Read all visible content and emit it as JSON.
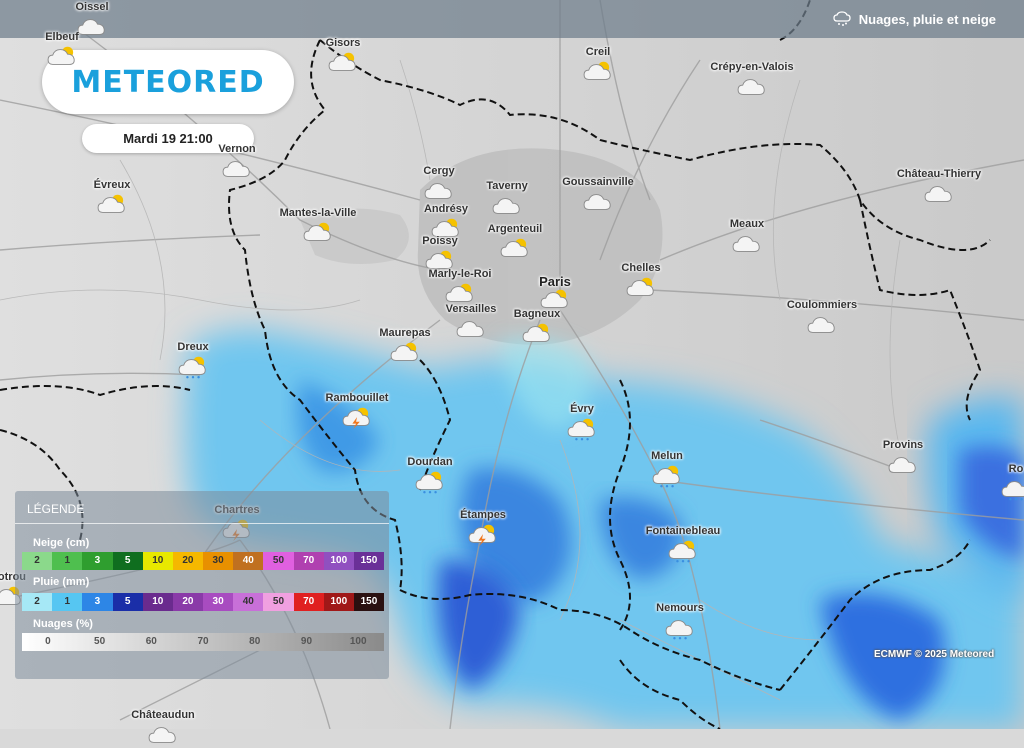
{
  "layer": {
    "title": "Nuages, pluie et neige",
    "icon": "cloud-rain-snow-icon"
  },
  "brand": {
    "logo_text": "METEORED",
    "color": "#1aa0dc"
  },
  "forecast": {
    "date_time": "Mardi 19 21:00"
  },
  "credit": "ECMWF © 2025 Meteored",
  "cities": [
    {
      "name": "Oissel",
      "icon": "cloud-icon"
    },
    {
      "name": "Elbeuf",
      "icon": "partly-cloudy-icon"
    },
    {
      "name": "Gisors",
      "icon": "partly-cloudy-icon"
    },
    {
      "name": "Creil",
      "icon": "partly-cloudy-icon"
    },
    {
      "name": "Crépy-en-Valois",
      "icon": "cloud-icon"
    },
    {
      "name": "Vernon",
      "icon": "cloud-icon"
    },
    {
      "name": "Évreux",
      "icon": "partly-cloudy-icon"
    },
    {
      "name": "Cergy",
      "icon": "cloud-icon"
    },
    {
      "name": "Taverny",
      "icon": "cloud-icon"
    },
    {
      "name": "Goussainville",
      "icon": "cloud-icon"
    },
    {
      "name": "Château-Thierry",
      "icon": "cloud-icon"
    },
    {
      "name": "Mantes-la-Ville",
      "icon": "partly-cloudy-icon"
    },
    {
      "name": "Andrésy",
      "icon": "partly-cloudy-icon"
    },
    {
      "name": "Argenteuil",
      "icon": "partly-cloudy-icon"
    },
    {
      "name": "Meaux",
      "icon": "cloud-icon"
    },
    {
      "name": "Poissy",
      "icon": "partly-cloudy-icon"
    },
    {
      "name": "Marly-le-Roi",
      "icon": "partly-cloudy-icon"
    },
    {
      "name": "Paris",
      "icon": "partly-cloudy-icon"
    },
    {
      "name": "Chelles",
      "icon": "partly-cloudy-icon"
    },
    {
      "name": "Coulommiers",
      "icon": "cloud-icon"
    },
    {
      "name": "Versailles",
      "icon": "cloud-icon"
    },
    {
      "name": "Bagneux",
      "icon": "partly-cloudy-icon"
    },
    {
      "name": "Maurepas",
      "icon": "partly-cloudy-icon"
    },
    {
      "name": "Dreux",
      "icon": "partly-cloudy-rain-icon"
    },
    {
      "name": "Rambouillet",
      "icon": "thunderstorm-icon"
    },
    {
      "name": "Évry",
      "icon": "partly-cloudy-rain-icon"
    },
    {
      "name": "Provins",
      "icon": "cloud-icon"
    },
    {
      "name": "Dourdan",
      "icon": "partly-cloudy-rain-icon"
    },
    {
      "name": "Melun",
      "icon": "partly-cloudy-rain-icon"
    },
    {
      "name": "Chartres",
      "icon": "thunderstorm-icon"
    },
    {
      "name": "Étampes",
      "icon": "thunderstorm-icon"
    },
    {
      "name": "Fontainebleau",
      "icon": "partly-cloudy-rain-icon"
    },
    {
      "name": "Nemours",
      "icon": "cloud-rain-icon"
    },
    {
      "name": "Rotrou",
      "icon": "partly-cloudy-icon"
    },
    {
      "name": "Ro",
      "icon": "cloud-rain-icon"
    },
    {
      "name": "Châteaudun",
      "icon": "cloud-icon"
    }
  ],
  "legend": {
    "title": "LÉGENDE",
    "snow": {
      "label": "Neige (cm)",
      "steps": [
        {
          "value": "2",
          "color": "#8bd98b"
        },
        {
          "value": "1",
          "color": "#4fbf4f"
        },
        {
          "value": "3",
          "color": "#2f9e2f"
        },
        {
          "value": "5",
          "color": "#0f6e1f"
        },
        {
          "value": "10",
          "color": "#e8e800"
        },
        {
          "value": "20",
          "color": "#f5b800"
        },
        {
          "value": "30",
          "color": "#e89000"
        },
        {
          "value": "40",
          "color": "#c07020"
        },
        {
          "value": "50",
          "color": "#e060e0"
        },
        {
          "value": "70",
          "color": "#b040b0"
        },
        {
          "value": "100",
          "color": "#9050c0"
        },
        {
          "value": "150",
          "color": "#6a3098"
        }
      ]
    },
    "rain": {
      "label": "Pluie (mm)",
      "steps": [
        {
          "value": "2",
          "color": "#a6e8f6"
        },
        {
          "value": "1",
          "color": "#56c6f2"
        },
        {
          "value": "3",
          "color": "#2d86e6"
        },
        {
          "value": "5",
          "color": "#1a2ea8"
        },
        {
          "value": "10",
          "color": "#6a2b8e"
        },
        {
          "value": "20",
          "color": "#8a3aa8"
        },
        {
          "value": "30",
          "color": "#a84cc0"
        },
        {
          "value": "40",
          "color": "#c870d8"
        },
        {
          "value": "50",
          "color": "#f0a0e0"
        },
        {
          "value": "70",
          "color": "#e02020"
        },
        {
          "value": "100",
          "color": "#a01818"
        },
        {
          "value": "150",
          "color": "#2a1010"
        }
      ]
    },
    "clouds": {
      "label": "Nuages (%)",
      "ticks": [
        "0",
        "50",
        "60",
        "70",
        "80",
        "90",
        "100"
      ]
    }
  }
}
